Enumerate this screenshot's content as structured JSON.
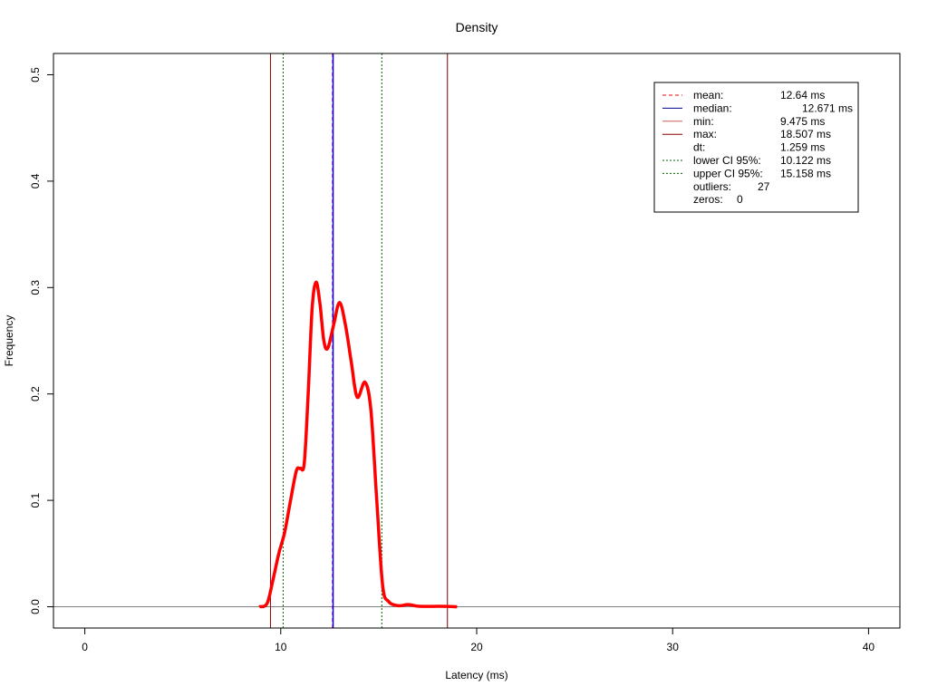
{
  "chart_data": {
    "type": "line",
    "title": "Density",
    "xlabel": "Latency (ms)",
    "ylabel": "Frequency",
    "xlim": [
      -1.6,
      41.6
    ],
    "ylim": [
      -0.02,
      0.52
    ],
    "x_ticks": [
      0,
      10,
      20,
      30,
      40
    ],
    "x_tick_labels": [
      "0",
      "10",
      "20",
      "30",
      "40"
    ],
    "y_ticks": [
      0.0,
      0.1,
      0.2,
      0.3,
      0.4,
      0.5
    ],
    "y_tick_labels": [
      "0.0",
      "0.1",
      "0.2",
      "0.3",
      "0.4",
      "0.5"
    ],
    "grid": false,
    "legend_position": "top-right",
    "series": [
      {
        "color": "#ff0000",
        "x": [
          8.9,
          9.3,
          9.6,
          9.9,
          10.2,
          10.5,
          10.8,
          11.0,
          11.2,
          11.4,
          11.6,
          11.8,
          12.0,
          12.2,
          12.4,
          12.7,
          13.0,
          13.3,
          13.6,
          13.9,
          14.3,
          14.6,
          14.9,
          15.2,
          15.5,
          16.0,
          16.5,
          17.0,
          17.5,
          18.0,
          18.5,
          19.0
        ],
        "y": [
          0.0,
          0.003,
          0.025,
          0.05,
          0.07,
          0.1,
          0.128,
          0.13,
          0.135,
          0.2,
          0.28,
          0.305,
          0.285,
          0.25,
          0.243,
          0.265,
          0.286,
          0.265,
          0.23,
          0.197,
          0.211,
          0.185,
          0.1,
          0.02,
          0.005,
          0.001,
          0.002,
          0.0005,
          0.0003,
          0.0004,
          0.0003,
          0.0
        ]
      }
    ],
    "vertical_lines": [
      {
        "name": "mean",
        "x": 12.64,
        "color": "#ff0000",
        "style": "dashed"
      },
      {
        "name": "median",
        "x": 12.671,
        "color": "#0000ff",
        "style": "solid"
      },
      {
        "name": "min",
        "x": 9.475,
        "color": "#8b0000",
        "style": "solid"
      },
      {
        "name": "max",
        "x": 18.507,
        "color": "#8b0000",
        "style": "solid"
      },
      {
        "name": "lower-ci",
        "x": 10.122,
        "color": "#006400",
        "style": "dotted"
      },
      {
        "name": "upper-ci",
        "x": 15.158,
        "color": "#006400",
        "style": "dotted"
      }
    ],
    "horizontal_line": {
      "y": 0,
      "color": "#808080"
    },
    "legend": [
      {
        "label": "mean:",
        "value": "12.64 ms",
        "color": "#ff0000",
        "style": "dashed",
        "indent": false
      },
      {
        "label": "median:",
        "value": "12.671 ms",
        "color": "#00008b",
        "style": "solid",
        "indent": true
      },
      {
        "label": "min:",
        "value": "9.475 ms",
        "color": "#cd5c5c",
        "style": "solid",
        "indent": false
      },
      {
        "label": "max:",
        "value": "18.507 ms",
        "color": "#8b0000",
        "style": "solid",
        "indent": false
      },
      {
        "label": "dt:",
        "value": "1.259 ms",
        "color": "",
        "style": "none",
        "indent": false
      },
      {
        "label": "lower CI 95%:",
        "value": "10.122 ms",
        "color": "#006400",
        "style": "dotted",
        "indent": false
      },
      {
        "label": "upper CI 95%:",
        "value": "15.158 ms",
        "color": "#006400",
        "style": "dotted",
        "indent": false
      },
      {
        "label": "outliers:",
        "value": "27",
        "color": "",
        "style": "none",
        "indent": false,
        "short": true
      },
      {
        "label": "zeros:",
        "value": "0",
        "color": "",
        "style": "none",
        "indent": false,
        "short": true
      }
    ]
  }
}
